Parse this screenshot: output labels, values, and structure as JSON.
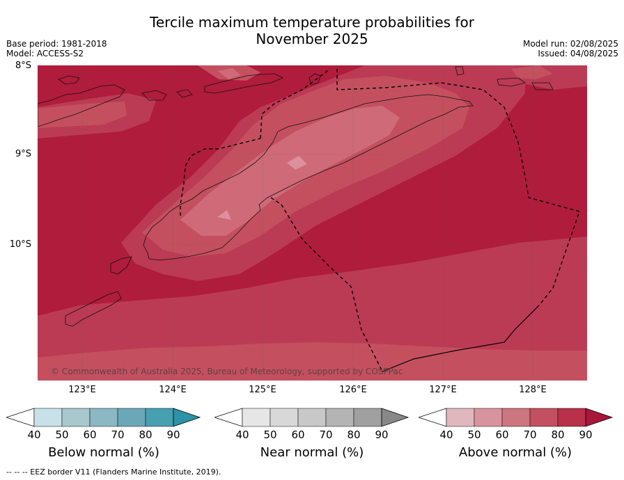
{
  "title_line1": "Tercile maximum temperature probabilities for",
  "title_line2": "November 2025",
  "meta": {
    "base_period": "Base period: 1981-2018",
    "model": "Model: ACCESS-S2",
    "model_run": "Model run: 02/08/2025",
    "issued": "Issued: 04/08/2025"
  },
  "lat_labels": [
    "8°S",
    "9°S",
    "10°S"
  ],
  "lon_labels": [
    "123°E",
    "124°E",
    "125°E",
    "126°E",
    "127°E",
    "128°E"
  ],
  "copyright": "© Commonwealth of Australia 2025, Bureau of Meteorology, supported by COSPPac",
  "colorbars": [
    {
      "label": "Below normal (%)",
      "ticks": [
        "40",
        "50",
        "60",
        "70",
        "80",
        "90"
      ],
      "colors": [
        "#ffffff",
        "#c8e1e8",
        "#a8c8ce",
        "#8ab8c3",
        "#6aa8b7",
        "#46a0b0",
        "#2d93a6"
      ]
    },
    {
      "label": "Near normal (%)",
      "ticks": [
        "40",
        "50",
        "60",
        "70",
        "80",
        "90"
      ],
      "colors": [
        "#ffffff",
        "#e6e6e6",
        "#d8d8d8",
        "#c8c8c8",
        "#b4b4b4",
        "#a0a0a0",
        "#888888"
      ]
    },
    {
      "label": "Above normal (%)",
      "ticks": [
        "40",
        "50",
        "60",
        "70",
        "80",
        "90"
      ],
      "colors": [
        "#ffffff",
        "#e0b7bf",
        "#d8949e",
        "#cc7680",
        "#c25060",
        "#b83049",
        "#a8163a"
      ]
    }
  ],
  "footnote": "--  --  -- EEZ border V11 (Flanders Marine Institute, 2019)."
}
